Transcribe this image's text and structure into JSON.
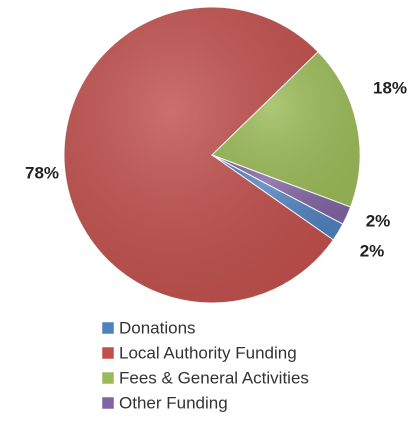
{
  "chart_data": {
    "type": "pie",
    "categories": [
      "Donations",
      "Local Authority Funding",
      "Fees & General Activities",
      "Other Funding"
    ],
    "values": [
      2,
      78,
      18,
      2
    ],
    "value_labels": [
      "2%",
      "78%",
      "18%",
      "2%"
    ],
    "colors": [
      "#4f81bd",
      "#c0504d",
      "#9bbb59",
      "#8064a2"
    ],
    "legend": "bottom"
  }
}
